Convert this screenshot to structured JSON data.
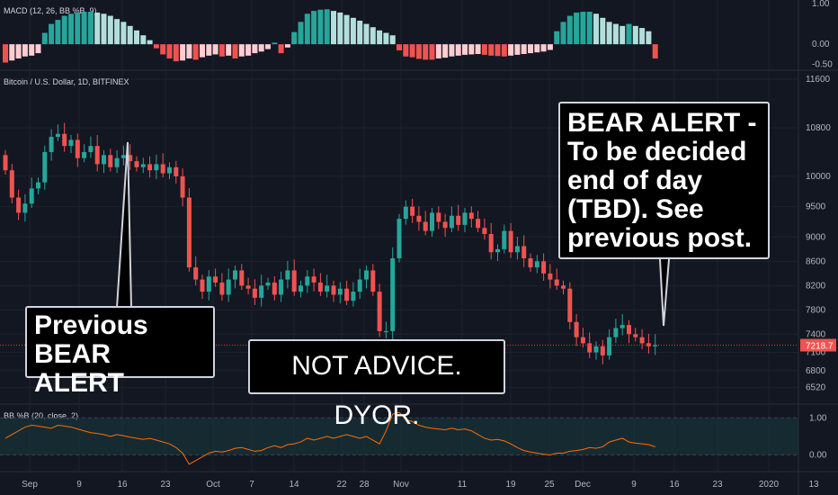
{
  "chart_data": [
    {
      "type": "bar",
      "panel": "macd",
      "title": "MACD (12, 26, BB %B, 9)",
      "yticks": [
        "1.00",
        "0.00",
        "-0.50"
      ],
      "ylim": [
        -0.55,
        1.0
      ],
      "values": [
        -0.45,
        -0.4,
        -0.35,
        -0.3,
        -0.28,
        -0.22,
        0.28,
        0.5,
        0.6,
        0.7,
        0.75,
        0.78,
        0.8,
        0.8,
        0.78,
        0.75,
        0.7,
        0.62,
        0.55,
        0.45,
        0.34,
        0.22,
        0.1,
        -0.1,
        -0.25,
        -0.35,
        -0.42,
        -0.4,
        -0.35,
        -0.38,
        -0.32,
        -0.28,
        -0.25,
        -0.3,
        -0.28,
        -0.35,
        -0.3,
        -0.28,
        -0.22,
        -0.18,
        -0.12,
        0.04,
        -0.22,
        -0.08,
        0.3,
        0.55,
        0.75,
        0.82,
        0.85,
        0.86,
        0.82,
        0.78,
        0.72,
        0.65,
        0.58,
        0.5,
        0.42,
        0.34,
        0.28,
        0.22,
        -0.15,
        -0.3,
        -0.32,
        -0.36,
        -0.38,
        -0.38,
        -0.35,
        -0.33,
        -0.3,
        -0.28,
        -0.26,
        -0.25,
        -0.24,
        -0.26,
        -0.28,
        -0.29,
        -0.3,
        -0.28,
        -0.26,
        -0.24,
        -0.22,
        -0.2,
        -0.18,
        -0.14,
        0.32,
        0.55,
        0.7,
        0.78,
        0.8,
        0.8,
        0.75,
        0.65,
        0.55,
        0.5,
        0.45,
        0.5,
        0.45,
        0.4,
        0.32,
        -0.35
      ]
    },
    {
      "type": "candlestick",
      "panel": "price",
      "title": "Bitcoin / U.S. Dollar, 1D, BITFINEX",
      "price_ticks": [
        11600,
        10800,
        10000,
        9500,
        9000,
        8600,
        8200,
        7800,
        7400,
        7100,
        6800,
        6520
      ],
      "last_price": "7218.7",
      "ylim": [
        6500,
        11600
      ],
      "candles": [
        [
          10350,
          10100
        ],
        [
          10100,
          9650
        ],
        [
          9650,
          9400
        ],
        [
          9400,
          9550
        ],
        [
          9550,
          9800
        ],
        [
          9800,
          9900
        ],
        [
          9900,
          10400
        ],
        [
          10400,
          10650
        ],
        [
          10650,
          10700
        ],
        [
          10700,
          10500
        ],
        [
          10500,
          10600
        ],
        [
          10600,
          10300
        ],
        [
          10300,
          10400
        ],
        [
          10400,
          10500
        ],
        [
          10500,
          10200
        ],
        [
          10200,
          10350
        ],
        [
          10350,
          10150
        ],
        [
          10150,
          10300
        ],
        [
          10300,
          10350
        ],
        [
          10350,
          10250
        ],
        [
          10250,
          10150
        ],
        [
          10150,
          10200
        ],
        [
          10200,
          10100
        ],
        [
          10100,
          10200
        ],
        [
          10200,
          10050
        ],
        [
          10050,
          10150
        ],
        [
          10150,
          10000
        ],
        [
          10000,
          9650
        ],
        [
          9650,
          8500
        ],
        [
          8500,
          8300
        ],
        [
          8300,
          8100
        ],
        [
          8100,
          8350
        ],
        [
          8350,
          8250
        ],
        [
          8250,
          8050
        ],
        [
          8050,
          8300
        ],
        [
          8300,
          8450
        ],
        [
          8450,
          8200
        ],
        [
          8200,
          8150
        ],
        [
          8150,
          8000
        ],
        [
          8000,
          8200
        ],
        [
          8200,
          8250
        ],
        [
          8250,
          8050
        ],
        [
          8050,
          8300
        ],
        [
          8300,
          8450
        ],
        [
          8450,
          8100
        ],
        [
          8100,
          8200
        ],
        [
          8200,
          8350
        ],
        [
          8350,
          8250
        ],
        [
          8250,
          8100
        ],
        [
          8100,
          8200
        ],
        [
          8200,
          8050
        ],
        [
          8050,
          8150
        ],
        [
          8150,
          7950
        ],
        [
          7950,
          8100
        ],
        [
          8100,
          8300
        ],
        [
          8300,
          8450
        ],
        [
          8450,
          8100
        ],
        [
          8100,
          7450
        ],
        [
          7450,
          7450
        ],
        [
          7450,
          8650
        ],
        [
          8650,
          9300
        ],
        [
          9300,
          9500
        ],
        [
          9500,
          9350
        ],
        [
          9350,
          9250
        ],
        [
          9250,
          9100
        ],
        [
          9100,
          9400
        ],
        [
          9400,
          9250
        ],
        [
          9250,
          9150
        ],
        [
          9150,
          9350
        ],
        [
          9350,
          9200
        ],
        [
          9200,
          9400
        ],
        [
          9400,
          9300
        ],
        [
          9300,
          9150
        ],
        [
          9150,
          9050
        ],
        [
          9050,
          8750
        ],
        [
          8750,
          8800
        ],
        [
          8800,
          9100
        ],
        [
          9100,
          8750
        ],
        [
          8750,
          8850
        ],
        [
          8850,
          8650
        ],
        [
          8650,
          8500
        ],
        [
          8500,
          8600
        ],
        [
          8600,
          8400
        ],
        [
          8400,
          8300
        ],
        [
          8300,
          8200
        ],
        [
          8200,
          8150
        ],
        [
          8150,
          7600
        ],
        [
          7600,
          7350
        ],
        [
          7350,
          7250
        ],
        [
          7250,
          7100
        ],
        [
          7100,
          7200
        ],
        [
          7200,
          7050
        ],
        [
          7050,
          7350
        ],
        [
          7350,
          7500
        ],
        [
          7500,
          7550
        ],
        [
          7550,
          7400
        ],
        [
          7400,
          7350
        ],
        [
          7350,
          7250
        ],
        [
          7250,
          7200
        ],
        [
          7200,
          7220
        ]
      ],
      "x_ticks": [
        "Sep",
        "9",
        "16",
        "23",
        "Oct",
        "7",
        "14",
        "22",
        "28",
        "Nov",
        "11",
        "19",
        "25",
        "Dec",
        "9",
        "16",
        "23",
        "2020",
        "13"
      ]
    },
    {
      "type": "line",
      "panel": "bbpercentb",
      "title": "BB %B (20, close, 2)",
      "yticks": [
        "1.00",
        "0.00"
      ],
      "ylim": [
        -0.35,
        1.2
      ],
      "values": [
        0.45,
        0.55,
        0.65,
        0.75,
        0.8,
        0.78,
        0.75,
        0.72,
        0.8,
        0.78,
        0.75,
        0.7,
        0.65,
        0.6,
        0.58,
        0.55,
        0.5,
        0.55,
        0.52,
        0.48,
        0.45,
        0.42,
        0.45,
        0.4,
        0.35,
        0.3,
        0.2,
        0.05,
        -0.25,
        -0.15,
        -0.05,
        0.05,
        0.1,
        0.08,
        0.12,
        0.18,
        0.2,
        0.15,
        0.1,
        0.12,
        0.2,
        0.25,
        0.2,
        0.28,
        0.3,
        0.35,
        0.45,
        0.4,
        0.45,
        0.5,
        0.45,
        0.5,
        0.55,
        0.5,
        0.45,
        0.5,
        0.4,
        0.3,
        0.65,
        1.1,
        1.15,
        0.95,
        0.9,
        0.8,
        0.75,
        0.72,
        0.7,
        0.68,
        0.72,
        0.68,
        0.7,
        0.65,
        0.55,
        0.45,
        0.4,
        0.42,
        0.38,
        0.3,
        0.2,
        0.12,
        0.08,
        0.05,
        0.02,
        0.0,
        0.05,
        0.05,
        0.1,
        0.12,
        0.15,
        0.2,
        0.18,
        0.22,
        0.35,
        0.4,
        0.45,
        0.35,
        0.32,
        0.3,
        0.28,
        0.22
      ]
    }
  ],
  "colors": {
    "background": "#131722",
    "up": "#26a69a",
    "down": "#ef5350",
    "macd_up_strong": "#26a69a",
    "macd_up_weak": "#b2dfdb",
    "macd_down_strong": "#ef5350",
    "macd_down_weak": "#ffcdd2",
    "bb_line": "#ff6d00",
    "price_line": "#ff2d2d",
    "last_price_bg": "#ef5350"
  },
  "annotations": {
    "previous_alert": "Previous BEAR ALERT",
    "disclaimer": "NOT ADVICE. DYOR.",
    "bear_alert": "BEAR ALERT - To be decided end of day (TBD). See previous post."
  }
}
